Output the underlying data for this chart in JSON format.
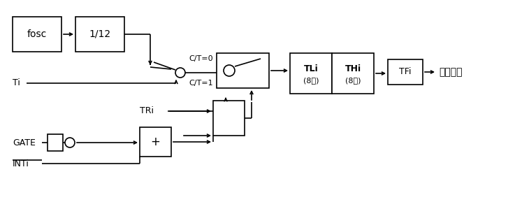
{
  "bg": "#ffffff",
  "lc": "#000000",
  "lw": 1.2,
  "figsize": [
    7.47,
    2.89
  ],
  "dpi": 100,
  "fosc": "fosc",
  "div12": "1/12",
  "tli1": "TLi",
  "tli2": "(8位)",
  "thi1": "THi",
  "thi2": "(8位)",
  "tfi": "TFi",
  "ct0": "C/T=0",
  "ct1": "C/T=1",
  "ti": "Ti",
  "tri": "TRi",
  "gate": "GATE",
  "inti": "INTi",
  "interrupt": "中断请求",
  "plus": "+"
}
